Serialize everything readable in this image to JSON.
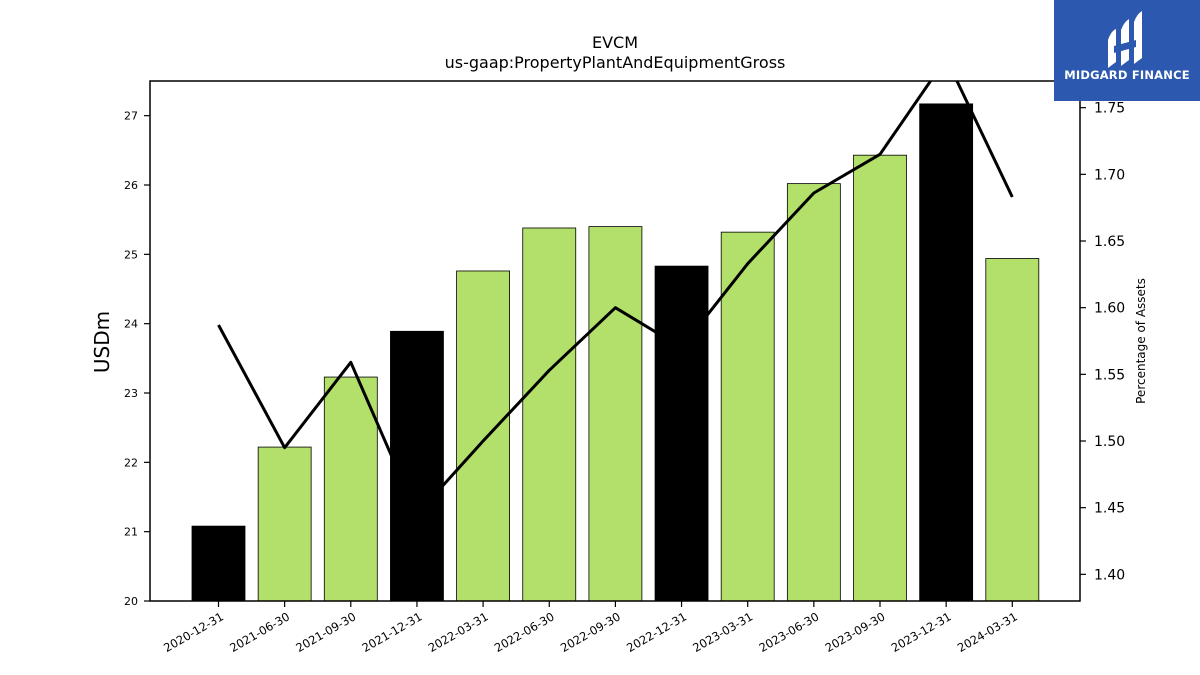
{
  "logo": {
    "text": "MIDGARD FINANCE",
    "background": "#2c58b0"
  },
  "chart_data": {
    "type": "bar",
    "title": "EVCM",
    "subtitle": "us-gaap:PropertyPlantAndEquipmentGross",
    "xlabel": "",
    "ylabel": "USDm",
    "y2label": "Percentage of Assets",
    "categories": [
      "2020-12-31",
      "2021-06-30",
      "2021-09-30",
      "2021-12-31",
      "2022-03-31",
      "2022-06-30",
      "2022-09-30",
      "2022-12-31",
      "2023-03-31",
      "2023-06-30",
      "2023-09-30",
      "2023-12-31",
      "2024-03-31"
    ],
    "series": [
      {
        "type": "bar",
        "values": [
          21.08,
          22.22,
          23.23,
          23.89,
          24.76,
          25.38,
          25.4,
          24.83,
          25.32,
          26.02,
          26.43,
          27.17,
          24.94
        ],
        "colors": [
          "#000000",
          "#b3df6b",
          "#b3df6b",
          "#000000",
          "#b3df6b",
          "#b3df6b",
          "#b3df6b",
          "#000000",
          "#b3df6b",
          "#b3df6b",
          "#b3df6b",
          "#000000",
          "#b3df6b"
        ]
      },
      {
        "type": "line",
        "axis": "right",
        "color": "#000000",
        "values": [
          1.587,
          1.495,
          1.559,
          1.445,
          1.5,
          1.553,
          1.6,
          1.57,
          1.633,
          1.686,
          1.715,
          1.787,
          1.683
        ]
      }
    ],
    "ylim": [
      20,
      27.5
    ],
    "y_ticks": [
      20,
      21,
      22,
      23,
      24,
      25,
      26,
      27
    ],
    "y2lim": [
      1.38,
      1.77
    ],
    "y2_ticks": [
      "1.40",
      "1.45",
      "1.50",
      "1.55",
      "1.60",
      "1.65",
      "1.70",
      "1.75"
    ],
    "grid": false,
    "legend": "none"
  }
}
